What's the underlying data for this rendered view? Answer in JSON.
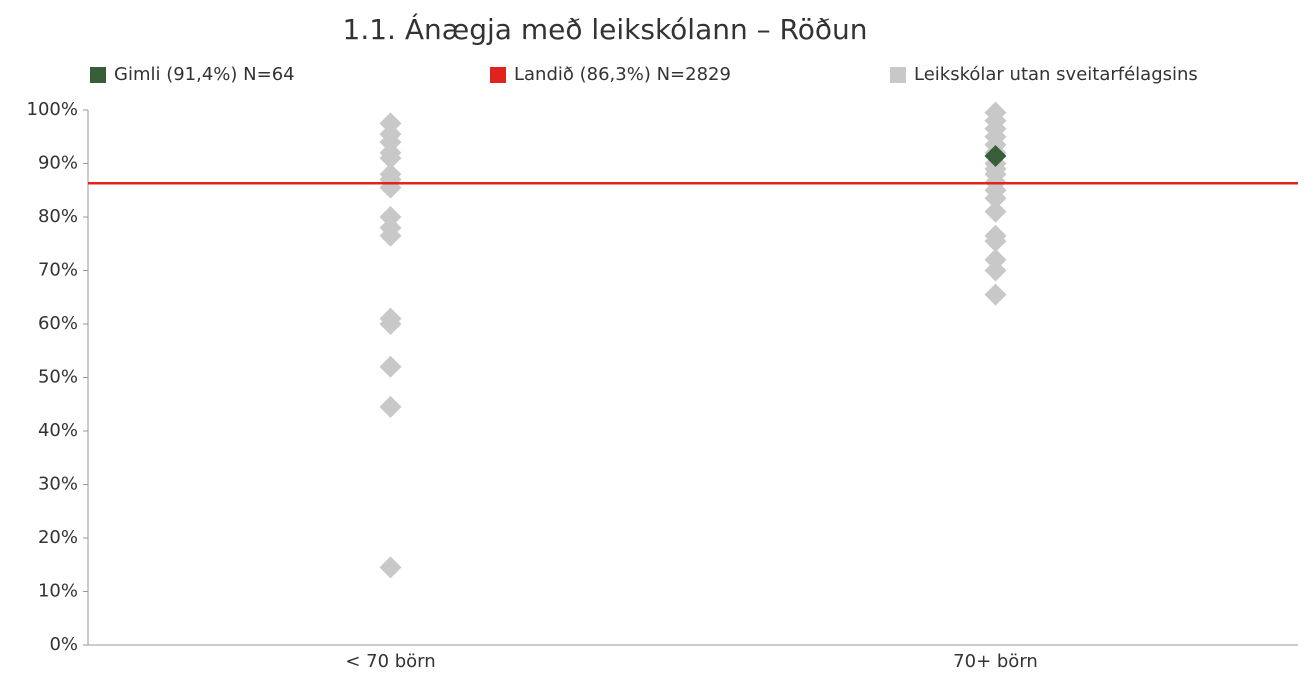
{
  "chart_data": {
    "type": "strip",
    "title": "1.1. Ánægja með leikskólann – Röðun",
    "categories": [
      "< 70 börn",
      "70+ börn"
    ],
    "ylim": [
      0,
      100
    ],
    "yticks": [
      {
        "value": 0,
        "label": "0%"
      },
      {
        "value": 10,
        "label": "10%"
      },
      {
        "value": 20,
        "label": "20%"
      },
      {
        "value": 30,
        "label": "30%"
      },
      {
        "value": 40,
        "label": "40%"
      },
      {
        "value": 50,
        "label": "50%"
      },
      {
        "value": 60,
        "label": "60%"
      },
      {
        "value": 70,
        "label": "70%"
      },
      {
        "value": 80,
        "label": "80%"
      },
      {
        "value": 90,
        "label": "90%"
      },
      {
        "value": 100,
        "label": "100%"
      }
    ],
    "series": [
      {
        "name": "Gimli (91,4%) N=64",
        "color": "#375e38",
        "values": [
          [],
          [
            91.4
          ]
        ]
      },
      {
        "name": "Landið (86,3%) N=2829",
        "color": "#e0231c",
        "type": "hline",
        "value": 86.3
      },
      {
        "name": "Leikskólar utan sveitarfélagsins",
        "color": "#c8c8c8",
        "values": [
          [
            97.5,
            95.5,
            94,
            92,
            91,
            88,
            87,
            85.5,
            80,
            78,
            76.5,
            61,
            60,
            52,
            44.5,
            14.5
          ],
          [
            99.5,
            98,
            96.5,
            95,
            93.5,
            92,
            90,
            89,
            88,
            86.5,
            85,
            83.5,
            81,
            76.5,
            75.5,
            72,
            70,
            65.5
          ]
        ]
      }
    ]
  }
}
